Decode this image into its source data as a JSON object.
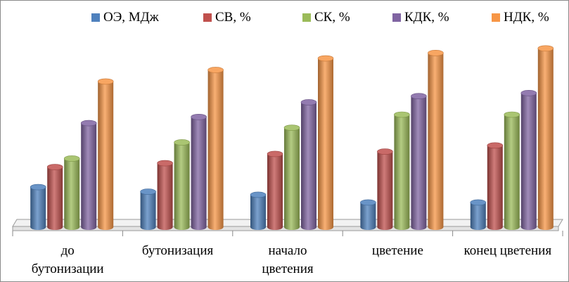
{
  "chart_data": {
    "type": "bar",
    "style": "3d-cylinder",
    "categories": [
      "до бутонизации",
      "бутонизация",
      "начало цветения",
      "цветение",
      "конец цветения"
    ],
    "category_lines": [
      [
        "до",
        "бутонизации"
      ],
      [
        "бутонизация"
      ],
      [
        "начало",
        "цветения"
      ],
      [
        "цветение"
      ],
      [
        "конец цветения"
      ]
    ],
    "series": [
      {
        "name": "ОЭ, МДж",
        "color": "#4f81bd",
        "values": [
          5.2,
          4.6,
          4.2,
          3.2,
          3.2
        ]
      },
      {
        "name": "СВ, %",
        "color": "#c0504d",
        "values": [
          7.8,
          8.3,
          9.5,
          9.8,
          10.6
        ]
      },
      {
        "name": "СК, %",
        "color": "#9bbb59",
        "values": [
          8.9,
          11.0,
          12.9,
          14.6,
          14.6
        ]
      },
      {
        "name": "КДК, %",
        "color": "#8064a2",
        "values": [
          13.5,
          14.3,
          16.2,
          17.0,
          17.4
        ]
      },
      {
        "name": "НДК, %",
        "color": "#f79646",
        "values": [
          18.9,
          20.4,
          21.9,
          22.6,
          23.2
        ]
      }
    ],
    "ylim": [
      0,
      24
    ],
    "axis_labels_visible": false,
    "grid": false,
    "legend_position": "top"
  }
}
